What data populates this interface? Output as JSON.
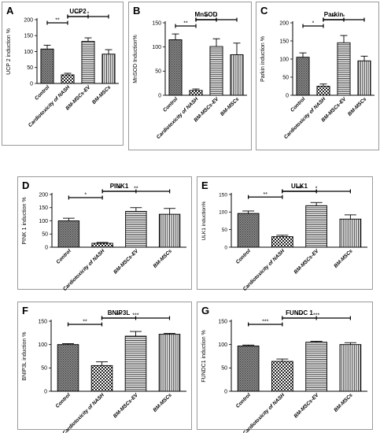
{
  "chart_data": [
    {
      "letter": "A",
      "title": "UCP2",
      "type": "bar",
      "ylabel": "UCP 2 induction %",
      "ylim": [
        0,
        200
      ],
      "yticks": [
        "0",
        "50",
        "100",
        "150",
        "200"
      ],
      "categories": [
        "Control",
        "Cardiotoxicity of NASH",
        "BM-MSCs-EV",
        "BM-MSCs"
      ],
      "values": [
        108,
        27,
        132,
        92
      ],
      "errors": [
        12,
        5,
        11,
        14
      ],
      "patterns": [
        "dots",
        "check",
        "hlines",
        "vlines"
      ],
      "comparisons": [
        {
          "from": 0,
          "to": 1,
          "label": "**"
        },
        {
          "from": 1,
          "to": 2,
          "label": "***"
        },
        {
          "from": 1,
          "to": 3,
          "label": "*"
        }
      ]
    },
    {
      "letter": "B",
      "title": "MnSOD",
      "type": "bar",
      "ylabel": "MnSOD Induction%",
      "ylim": [
        0,
        150
      ],
      "yticks": [
        "0",
        "50",
        "100",
        "150"
      ],
      "categories": [
        "Control",
        "Cardiotoxicity of NASH",
        "BM-MSCs-EV",
        "BM-MSCs"
      ],
      "values": [
        115,
        10,
        101,
        84
      ],
      "errors": [
        12,
        3,
        16,
        24
      ],
      "patterns": [
        "dots",
        "check",
        "hlines",
        "vlines"
      ],
      "comparisons": [
        {
          "from": 0,
          "to": 1,
          "label": "**"
        },
        {
          "from": 1,
          "to": 2,
          "label": "**"
        },
        {
          "from": 1,
          "to": 2,
          "label": "*"
        },
        {
          "from": 1,
          "to": 3,
          "label": "*"
        }
      ]
    },
    {
      "letter": "C",
      "title": "Parkin",
      "type": "bar",
      "ylabel": "Parkin induction %",
      "ylim": [
        0,
        200
      ],
      "yticks": [
        "0",
        "50",
        "100",
        "150",
        "200"
      ],
      "categories": [
        "Control",
        "Cardiotoxicity of NASH",
        "BM-MSCs-EV",
        "BM-MSCs"
      ],
      "values": [
        105,
        25,
        145,
        95
      ],
      "errors": [
        12,
        6,
        20,
        13
      ],
      "patterns": [
        "dots",
        "check",
        "hlines",
        "vlines"
      ],
      "comparisons": [
        {
          "from": 0,
          "to": 1,
          "label": "*"
        },
        {
          "from": 1,
          "to": 2,
          "label": "*"
        },
        {
          "from": 1,
          "to": 2,
          "label": "**"
        },
        {
          "from": 1,
          "to": 3,
          "label": "*"
        }
      ]
    },
    {
      "letter": "D",
      "title": "PINK1",
      "type": "bar",
      "ylabel": "PINK 1 induction %",
      "ylim": [
        0,
        200
      ],
      "yticks": [
        "0",
        "50",
        "100",
        "150",
        "200"
      ],
      "categories": [
        "Control",
        "Cardiotoxicity of NASH",
        "BM-MSCs-EV",
        "BM-MSCs"
      ],
      "values": [
        100,
        15,
        136,
        125
      ],
      "errors": [
        10,
        3,
        14,
        22
      ],
      "patterns": [
        "dots",
        "check",
        "hlines",
        "vlines"
      ],
      "comparisons": [
        {
          "from": 0,
          "to": 1,
          "label": "*"
        },
        {
          "from": 1,
          "to": 2,
          "label": "**"
        },
        {
          "from": 1,
          "to": 3,
          "label": "**"
        }
      ]
    },
    {
      "letter": "E",
      "title": "ULK1",
      "type": "bar",
      "ylabel": "ULK1 induction%",
      "ylim": [
        0,
        150
      ],
      "yticks": [
        "0",
        "50",
        "100",
        "150"
      ],
      "categories": [
        "Control",
        "Cardiotoxicity of NASH",
        "BM-MSCs-EV",
        "BM-MSCs"
      ],
      "values": [
        96,
        30,
        118,
        80
      ],
      "errors": [
        7,
        4,
        9,
        12
      ],
      "patterns": [
        "dots",
        "check",
        "hlines",
        "vlines"
      ],
      "comparisons": [
        {
          "from": 0,
          "to": 1,
          "label": "**"
        },
        {
          "from": 1,
          "to": 2,
          "label": "***"
        },
        {
          "from": 1,
          "to": 2,
          "label": "**"
        },
        {
          "from": 1,
          "to": 3,
          "label": "*"
        }
      ]
    },
    {
      "letter": "F",
      "title": "BNIP3L",
      "type": "bar",
      "ylabel": "BNIP3L induction %",
      "ylim": [
        0,
        150
      ],
      "yticks": [
        "0",
        "50",
        "100",
        "150"
      ],
      "categories": [
        "Control",
        "Cardiotoxicity of NASH",
        "BM-MSCs-EV",
        "BM-MSCs"
      ],
      "values": [
        100,
        55,
        118,
        122
      ],
      "errors": [
        2,
        8,
        10,
        2
      ],
      "patterns": [
        "dots",
        "check",
        "hlines",
        "vlines"
      ],
      "comparisons": [
        {
          "from": 0,
          "to": 1,
          "label": "**"
        },
        {
          "from": 1,
          "to": 2,
          "label": "***"
        },
        {
          "from": 1,
          "to": 3,
          "label": "***"
        }
      ]
    },
    {
      "letter": "G",
      "title": "FUNDC 1",
      "type": "bar",
      "ylabel": "FUNDC1 induction %",
      "ylim": [
        0,
        150
      ],
      "yticks": [
        "0",
        "50",
        "100",
        "150"
      ],
      "categories": [
        "Control",
        "Cardiotoxicity of NASH",
        "BM-MSCs-EV",
        "BM-MSCs"
      ],
      "values": [
        97,
        64,
        105,
        100
      ],
      "errors": [
        2,
        5,
        2,
        4
      ],
      "patterns": [
        "dots",
        "check",
        "hlines",
        "vlines"
      ],
      "comparisons": [
        {
          "from": 0,
          "to": 1,
          "label": "***"
        },
        {
          "from": 1,
          "to": 2,
          "label": "***"
        },
        {
          "from": 1,
          "to": 3,
          "label": "***"
        }
      ]
    }
  ]
}
